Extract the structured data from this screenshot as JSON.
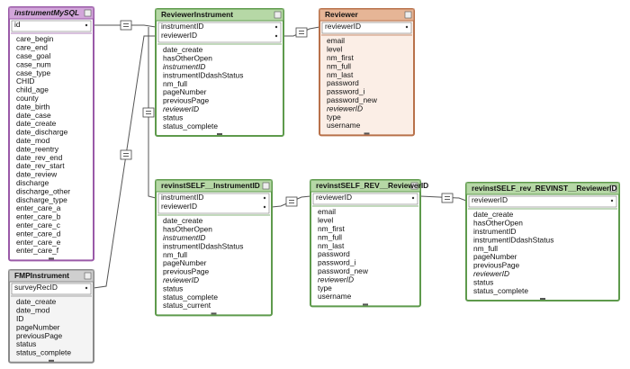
{
  "tables": [
    {
      "title": "instrumentMySQL",
      "color": "#d2a6da",
      "italic_title": true,
      "keys": [
        "id"
      ],
      "fields": [
        {
          "text": "care_begin",
          "italic": false
        },
        {
          "text": "care_end",
          "italic": false
        },
        {
          "text": "case_goal",
          "italic": false
        },
        {
          "text": "case_num",
          "italic": false
        },
        {
          "text": "case_type",
          "italic": false
        },
        {
          "text": "CHID",
          "italic": false
        },
        {
          "text": "child_age",
          "italic": false
        },
        {
          "text": "county",
          "italic": false
        },
        {
          "text": "date_birth",
          "italic": false
        },
        {
          "text": "date_case",
          "italic": false
        },
        {
          "text": "date_create",
          "italic": false
        },
        {
          "text": "date_discharge",
          "italic": false
        },
        {
          "text": "date_mod",
          "italic": false
        },
        {
          "text": "date_reentry",
          "italic": false
        },
        {
          "text": "date_rev_end",
          "italic": false
        },
        {
          "text": "date_rev_start",
          "italic": false
        },
        {
          "text": "date_review",
          "italic": false
        },
        {
          "text": "discharge",
          "italic": false
        },
        {
          "text": "discharge_other",
          "italic": false
        },
        {
          "text": "discharge_type",
          "italic": false
        },
        {
          "text": "enter_care_a",
          "italic": false
        },
        {
          "text": "enter_care_b",
          "italic": false
        },
        {
          "text": "enter_care_c",
          "italic": false
        },
        {
          "text": "enter_care_d",
          "italic": false
        },
        {
          "text": "enter_care_e",
          "italic": false
        },
        {
          "text": "enter_care_f",
          "italic": false
        }
      ]
    },
    {
      "title": "FMPInstrument",
      "color": "#cfcfcf",
      "italic_title": false,
      "keys": [
        "surveyRecID"
      ],
      "fields": [
        {
          "text": "date_create",
          "italic": false
        },
        {
          "text": "date_mod",
          "italic": false
        },
        {
          "text": "ID",
          "italic": false
        },
        {
          "text": "pageNumber",
          "italic": false
        },
        {
          "text": "previousPage",
          "italic": false
        },
        {
          "text": "status",
          "italic": false
        },
        {
          "text": "status_complete",
          "italic": false
        }
      ]
    },
    {
      "title": "ReviewerInstrument",
      "color": "#b6d8a6",
      "italic_title": false,
      "keys": [
        "instrumentID",
        "reviewerID"
      ],
      "fields": [
        {
          "text": "date_create",
          "italic": false
        },
        {
          "text": "hasOtherOpen",
          "italic": false
        },
        {
          "text": "instrumentID",
          "italic": true
        },
        {
          "text": "instrumentIDdashStatus",
          "italic": false
        },
        {
          "text": "nm_full",
          "italic": false
        },
        {
          "text": "pageNumber",
          "italic": false
        },
        {
          "text": "previousPage",
          "italic": false
        },
        {
          "text": "reviewerID",
          "italic": true
        },
        {
          "text": "status",
          "italic": false
        },
        {
          "text": "status_complete",
          "italic": false
        }
      ]
    },
    {
      "title": "Reviewer",
      "color": "#e6b596",
      "italic_title": false,
      "keys": [
        "reviewerID"
      ],
      "fields": [
        {
          "text": "email",
          "italic": false
        },
        {
          "text": "level",
          "italic": false
        },
        {
          "text": "nm_first",
          "italic": false
        },
        {
          "text": "nm_full",
          "italic": false
        },
        {
          "text": "nm_last",
          "italic": false
        },
        {
          "text": "password",
          "italic": false
        },
        {
          "text": "password_i",
          "italic": false
        },
        {
          "text": "password_new",
          "italic": false
        },
        {
          "text": "reviewerID",
          "italic": true
        },
        {
          "text": "type",
          "italic": false
        },
        {
          "text": "username",
          "italic": false
        }
      ]
    },
    {
      "title": "revinstSELF__InstrumentID",
      "color": "#b6d8a6",
      "italic_title": false,
      "keys": [
        "instrumentID",
        "reviewerID"
      ],
      "fields": [
        {
          "text": "date_create",
          "italic": false
        },
        {
          "text": "hasOtherOpen",
          "italic": false
        },
        {
          "text": "instrumentID",
          "italic": true
        },
        {
          "text": "instrumentIDdashStatus",
          "italic": false
        },
        {
          "text": "nm_full",
          "italic": false
        },
        {
          "text": "pageNumber",
          "italic": false
        },
        {
          "text": "previousPage",
          "italic": false
        },
        {
          "text": "reviewerID",
          "italic": true
        },
        {
          "text": "status",
          "italic": false
        },
        {
          "text": "status_complete",
          "italic": false
        },
        {
          "text": "status_current",
          "italic": false
        }
      ]
    },
    {
      "title": "revinstSELF_REV__ReviewerID",
      "color": "#b6d8a6",
      "italic_title": false,
      "keys": [
        "reviewerID"
      ],
      "fields": [
        {
          "text": "email",
          "italic": false
        },
        {
          "text": "level",
          "italic": false
        },
        {
          "text": "nm_first",
          "italic": false
        },
        {
          "text": "nm_full",
          "italic": false
        },
        {
          "text": "nm_last",
          "italic": false
        },
        {
          "text": "password",
          "italic": false
        },
        {
          "text": "password_i",
          "italic": false
        },
        {
          "text": "password_new",
          "italic": false
        },
        {
          "text": "reviewerID",
          "italic": true
        },
        {
          "text": "type",
          "italic": false
        },
        {
          "text": "username",
          "italic": false
        }
      ]
    },
    {
      "title": "revinstSELF_rev_REVINST__ReviewerID",
      "color": "#b6d8a6",
      "italic_title": false,
      "keys": [
        "reviewerID"
      ],
      "fields": [
        {
          "text": "date_create",
          "italic": false
        },
        {
          "text": "hasOtherOpen",
          "italic": false
        },
        {
          "text": "instrumentID",
          "italic": false
        },
        {
          "text": "instrumentIDdashStatus",
          "italic": false
        },
        {
          "text": "nm_full",
          "italic": false
        },
        {
          "text": "pageNumber",
          "italic": false
        },
        {
          "text": "previousPage",
          "italic": false
        },
        {
          "text": "reviewerID",
          "italic": true
        },
        {
          "text": "status",
          "italic": false
        },
        {
          "text": "status_complete",
          "italic": false
        }
      ]
    }
  ]
}
